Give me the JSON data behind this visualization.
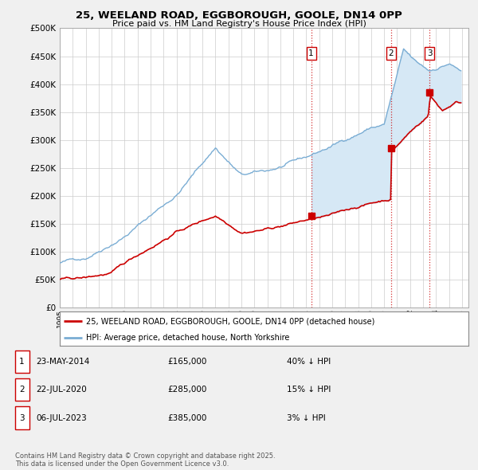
{
  "title": "25, WEELAND ROAD, EGGBOROUGH, GOOLE, DN14 0PP",
  "subtitle": "Price paid vs. HM Land Registry's House Price Index (HPI)",
  "ylim": [
    0,
    500000
  ],
  "yticks": [
    0,
    50000,
    100000,
    150000,
    200000,
    250000,
    300000,
    350000,
    400000,
    450000,
    500000
  ],
  "sale_color": "#cc0000",
  "hpi_color": "#7aadd4",
  "hpi_fill_color": "#d6e8f5",
  "background_color": "#f0f0f0",
  "plot_bg_color": "#ffffff",
  "sale_year_floats": [
    2014.38,
    2020.54,
    2023.51
  ],
  "sale_prices": [
    165000,
    285000,
    385000
  ],
  "sale_labels": [
    "1",
    "2",
    "3"
  ],
  "legend_sale_label": "25, WEELAND ROAD, EGGBOROUGH, GOOLE, DN14 0PP (detached house)",
  "legend_hpi_label": "HPI: Average price, detached house, North Yorkshire",
  "table_entries": [
    {
      "label": "1",
      "date": "23-MAY-2014",
      "price": "£165,000",
      "hpi": "40% ↓ HPI"
    },
    {
      "label": "2",
      "date": "22-JUL-2020",
      "price": "£285,000",
      "hpi": "15% ↓ HPI"
    },
    {
      "label": "3",
      "date": "06-JUL-2023",
      "price": "£385,000",
      "hpi": "3% ↓ HPI"
    }
  ],
  "footer_text": "Contains HM Land Registry data © Crown copyright and database right 2025.\nThis data is licensed under the Open Government Licence v3.0.",
  "vline_color": "#cc0000",
  "xstart": 1995,
  "xend": 2026.5
}
